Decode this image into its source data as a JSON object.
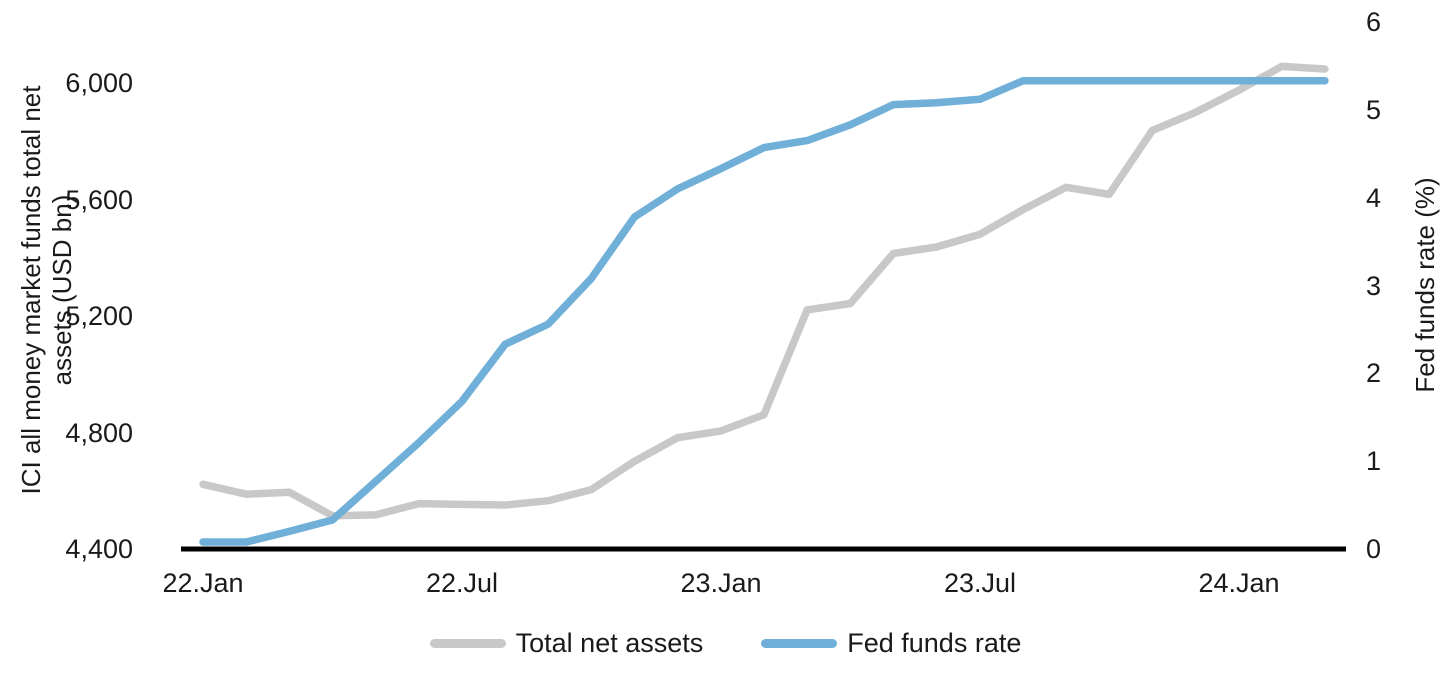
{
  "chart_data": {
    "type": "line",
    "title": "",
    "months": [
      "2022-01",
      "2022-02",
      "2022-03",
      "2022-04",
      "2022-05",
      "2022-06",
      "2022-07",
      "2022-08",
      "2022-09",
      "2022-10",
      "2022-11",
      "2022-12",
      "2023-01",
      "2023-02",
      "2023-03",
      "2023-04",
      "2023-05",
      "2023-06",
      "2023-07",
      "2023-08",
      "2023-09",
      "2023-10",
      "2023-11",
      "2023-12",
      "2024-01",
      "2024-02",
      "2024-03"
    ],
    "x_ticks": [
      {
        "index": 0,
        "label": "22.Jan"
      },
      {
        "index": 6,
        "label": "22.Jul"
      },
      {
        "index": 12,
        "label": "23.Jan"
      },
      {
        "index": 18,
        "label": "23.Jul"
      },
      {
        "index": 24,
        "label": "24.Jan"
      }
    ],
    "left_axis": {
      "label_line1": "ICI all money market funds total net",
      "label_line2": "assets (USD bn)",
      "range": [
        4400,
        6000
      ],
      "ticks": [
        {
          "value": 6000,
          "label": "6,000"
        },
        {
          "value": 5600,
          "label": "5,600"
        },
        {
          "value": 5200,
          "label": "5,200"
        },
        {
          "value": 4800,
          "label": "4,800"
        },
        {
          "value": 4400,
          "label": "4,400"
        }
      ]
    },
    "right_axis": {
      "label": "Fed funds rate (%)",
      "range": [
        0,
        6
      ],
      "ticks": [
        {
          "value": 6,
          "label": "6"
        },
        {
          "value": 5,
          "label": "5"
        },
        {
          "value": 4,
          "label": "4"
        },
        {
          "value": 3,
          "label": "3"
        },
        {
          "value": 2,
          "label": "2"
        },
        {
          "value": 1,
          "label": "1"
        },
        {
          "value": 0,
          "label": "0"
        }
      ]
    },
    "grid": false,
    "legend_position": "bottom-center",
    "series": [
      {
        "name": "Total net assets",
        "axis": "left",
        "color": "#c8c8c8",
        "values": [
          4622,
          4588,
          4595,
          4514,
          4517,
          4556,
          4553,
          4551,
          4566,
          4604,
          4701,
          4782,
          4805,
          4861,
          5221,
          5243,
          5415,
          5437,
          5480,
          5565,
          5642,
          5618,
          5837,
          5899,
          5975,
          6057,
          6048
        ]
      },
      {
        "name": "Fed funds rate",
        "axis": "right",
        "color": "#6fafd8",
        "values": [
          0.08,
          0.08,
          0.2,
          0.33,
          0.77,
          1.21,
          1.68,
          2.33,
          2.56,
          3.08,
          3.78,
          4.1,
          4.33,
          4.57,
          4.65,
          4.83,
          5.06,
          5.08,
          5.12,
          5.33,
          5.33,
          5.33,
          5.33,
          5.33,
          5.33,
          5.33,
          5.33
        ]
      }
    ],
    "axis_line_color": "#000000"
  },
  "legend": {
    "items": [
      {
        "label": "Total net assets",
        "color": "#c8c8c8"
      },
      {
        "label": "Fed funds rate",
        "color": "#6fafd8"
      }
    ]
  }
}
